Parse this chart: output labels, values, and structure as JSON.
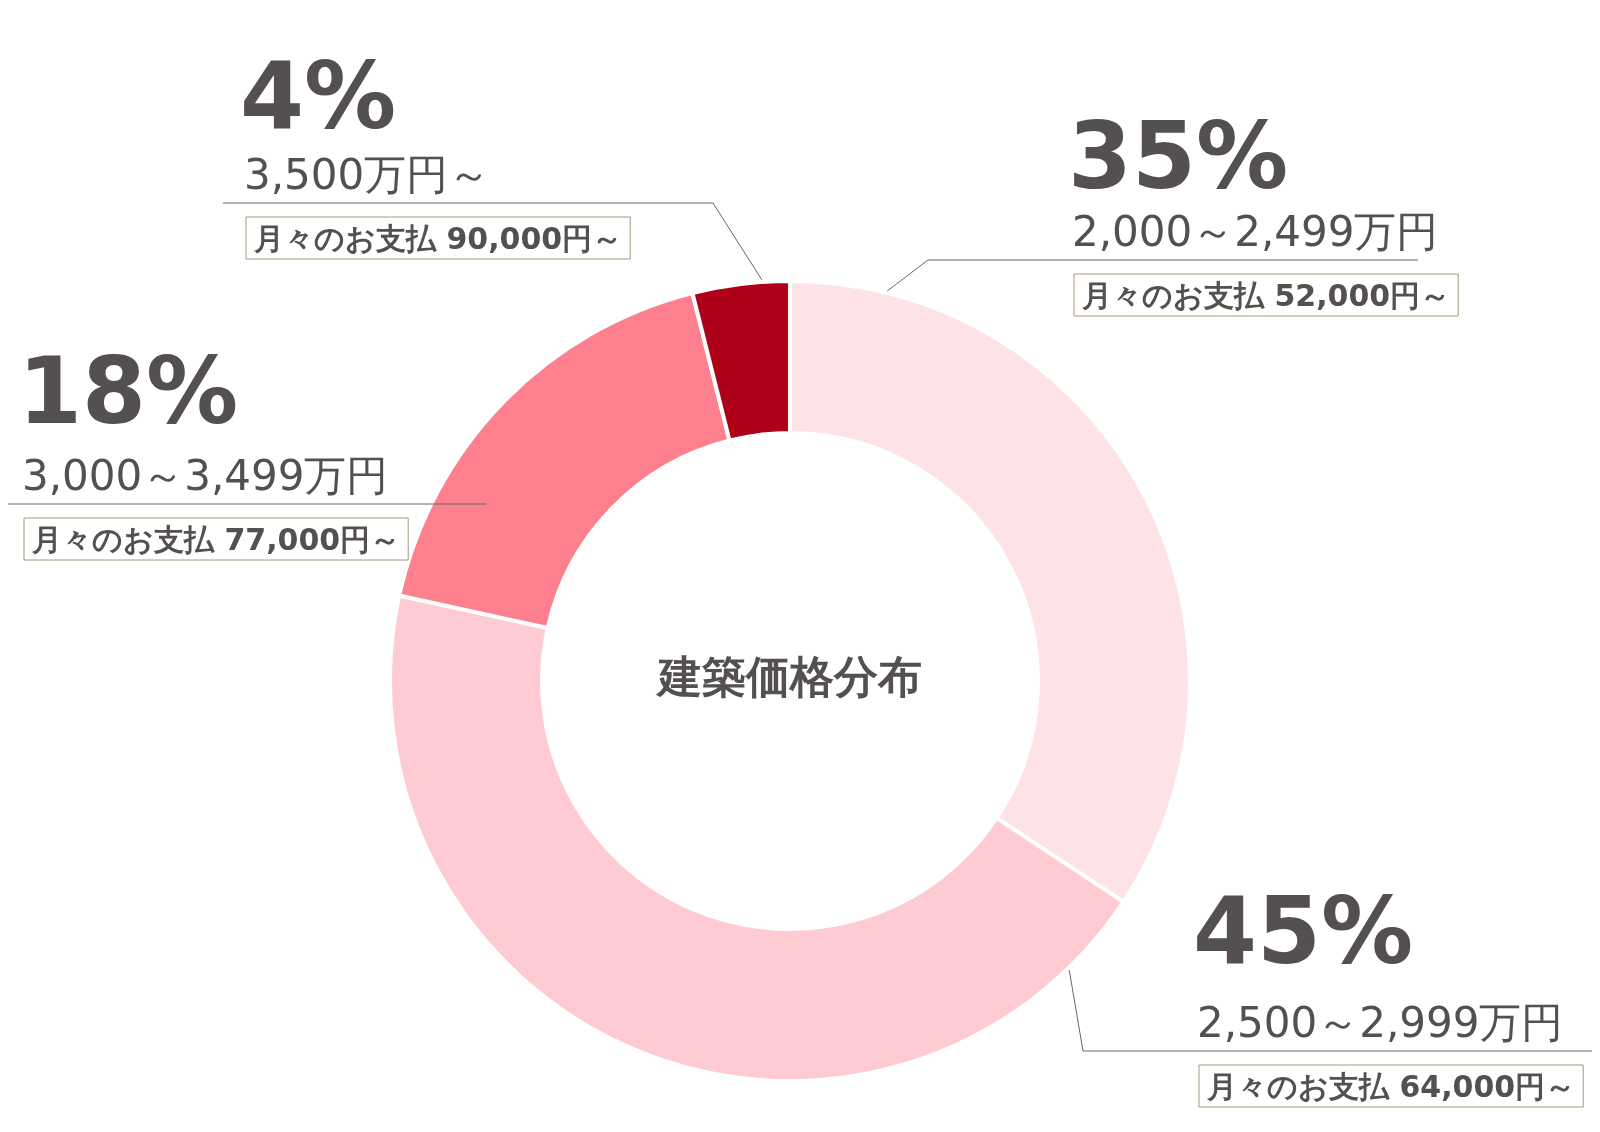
{
  "chart_data": {
    "type": "donut",
    "title": "建築価格分布",
    "categories": [
      "2,000～2,499万円",
      "2,500～2,999万円",
      "3,000～3,499万円",
      "3,500万円～"
    ],
    "values": [
      35,
      45,
      18,
      4
    ],
    "colors": [
      "#fde3e6",
      "#fdcbd1",
      "#fe808e",
      "#ae0019"
    ],
    "value_labels": [
      "35%",
      "45%",
      "18%",
      "4%"
    ],
    "annotations": [
      "月々のお支払 52,000円～",
      "月々のお支払 64,000円～",
      "月々のお支払 77,000円～",
      "月々のお支払 90,000円～"
    ],
    "legend": false
  }
}
